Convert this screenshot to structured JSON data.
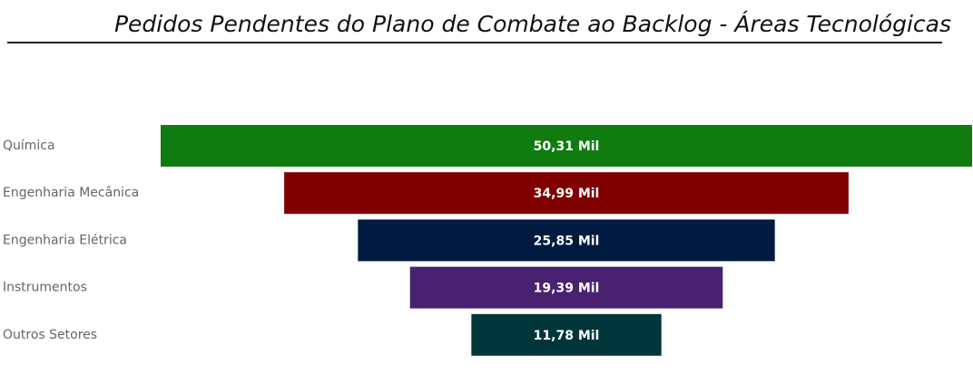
{
  "chart_data": {
    "type": "funnel",
    "title": "Pedidos Pendentes do Plano de Combate ao Backlog - Áreas Tecnológicas",
    "categories": [
      "Química",
      "Engenharia Mecânica",
      "Engenharia Elétrica",
      "Instrumentos",
      "Outros Setores"
    ],
    "values": [
      50.31,
      34.99,
      25.85,
      19.39,
      11.78
    ],
    "value_labels": [
      "50,31 Mil",
      "34,99 Mil",
      "25,85 Mil",
      "19,39 Mil",
      "11,78 Mil"
    ],
    "colors": [
      "#107c10",
      "#800000",
      "#001a40",
      "#482270",
      "#00363a"
    ]
  }
}
